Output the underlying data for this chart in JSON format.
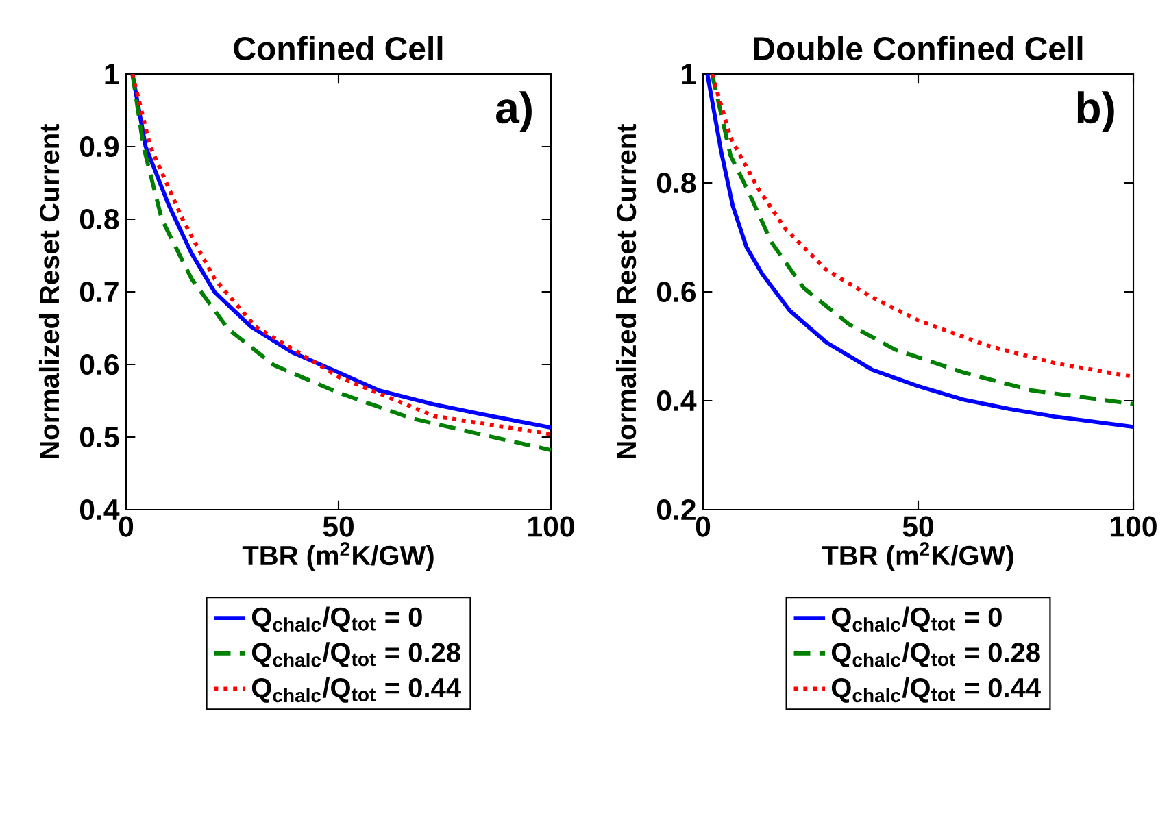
{
  "chart_data": [
    {
      "type": "line",
      "title": "Confined Cell",
      "xlabel": "TBR (m$^{2}$K/GW)",
      "ylabel": "Normalized Reset Current",
      "annotations": [
        "a)"
      ],
      "xlim": [
        0,
        100
      ],
      "ylim": [
        0.4,
        1
      ],
      "xticks": [
        0,
        50,
        100
      ],
      "yticks": [
        0.4,
        0.5,
        0.6,
        0.7,
        0.8,
        0.9,
        1
      ],
      "legend": "bottom",
      "marker": "none",
      "series": [
        {
          "name": "Q$_{chalc}$/Q$_{tot}$ = 0",
          "color": "#0000ff",
          "line_style": "solid",
          "x": [
            1.5,
            4.6,
            10,
            15.4,
            20.8,
            29.4,
            39,
            50,
            59.6,
            72.5,
            83.3,
            100
          ],
          "values": [
            1,
            0.9,
            0.82,
            0.753,
            0.7,
            0.652,
            0.617,
            0.589,
            0.564,
            0.545,
            0.532,
            0.513
          ]
        },
        {
          "name": "Q$_{chalc}$/Q$_{tot}$ = 0.28",
          "color": "#008000",
          "line_style": "dashed",
          "x": [
            1.5,
            4.1,
            8.4,
            15.4,
            24,
            34.8,
            50,
            67.1,
            83.3,
            100
          ],
          "values": [
            1,
            0.9,
            0.8,
            0.718,
            0.649,
            0.599,
            0.561,
            0.526,
            0.504,
            0.482
          ]
        },
        {
          "name": "Q$_{chalc}$/Q$_{tot}$ = 0.44",
          "color": "#ff0000",
          "line_style": "dotted",
          "x": [
            1.5,
            5.7,
            13.3,
            20.8,
            30.5,
            50,
            72.5,
            100
          ],
          "values": [
            1,
            0.9,
            0.8,
            0.718,
            0.652,
            0.583,
            0.529,
            0.504
          ]
        }
      ]
    },
    {
      "type": "line",
      "title": "Double Confined Cell",
      "xlabel": "TBR (m$^{2}$K/GW)",
      "ylabel": "Normalized Reset Current",
      "annotations": [
        "b)"
      ],
      "xlim": [
        0,
        100
      ],
      "ylim": [
        0.2,
        1
      ],
      "xticks": [
        0,
        50,
        100
      ],
      "yticks": [
        0.2,
        0.4,
        0.6,
        0.8,
        1
      ],
      "legend": "bottom",
      "marker": "none",
      "series": [
        {
          "name": "Q$_{chalc}$/Q$_{tot}$ = 0",
          "color": "#0000ff",
          "line_style": "solid",
          "x": [
            1,
            4.2,
            6.9,
            10.1,
            13.8,
            20.2,
            28.7,
            39.3,
            49.9,
            60.5,
            71.1,
            81.7,
            100
          ],
          "values": [
            1,
            0.858,
            0.758,
            0.682,
            0.632,
            0.565,
            0.507,
            0.457,
            0.427,
            0.402,
            0.385,
            0.371,
            0.352
          ]
        },
        {
          "name": "Q$_{chalc}$/Q$_{tot}$ = 0.28",
          "color": "#008000",
          "line_style": "dashed",
          "x": [
            2.1,
            6.4,
            10.6,
            15.9,
            23.4,
            34,
            44.6,
            60.5,
            76.4,
            100
          ],
          "values": [
            1,
            0.85,
            0.783,
            0.691,
            0.607,
            0.54,
            0.494,
            0.452,
            0.419,
            0.394
          ]
        },
        {
          "name": "Q$_{chalc}$/Q$_{tot}$ = 0.44",
          "color": "#ff0000",
          "line_style": "dotted",
          "x": [
            2.1,
            6.4,
            12.7,
            19.1,
            28.7,
            39.3,
            49.9,
            65.8,
            81.7,
            100
          ],
          "values": [
            1,
            0.883,
            0.791,
            0.716,
            0.64,
            0.59,
            0.548,
            0.502,
            0.469,
            0.444
          ]
        }
      ]
    }
  ]
}
